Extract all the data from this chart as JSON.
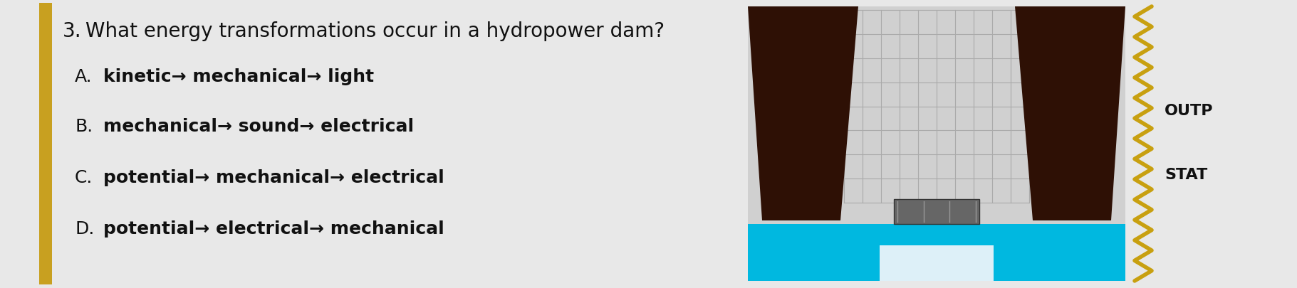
{
  "background_color": "#e8e8e8",
  "left_bar_color": "#c8a020",
  "question_number": "3.",
  "question_text": "What energy transformations occur in a hydropower dam?",
  "options": [
    {
      "letter": "A.",
      "text": "kinetic→ mechanical→ light"
    },
    {
      "letter": "B.",
      "text": "mechanical→ sound→ electrical"
    },
    {
      "letter": "C.",
      "text": "potential→ mechanical→ electrical"
    },
    {
      "letter": "D.",
      "text": "potential→ electrical→ mechanical"
    }
  ],
  "side_labels": [
    "OUTP",
    "STAT"
  ],
  "question_fontsize": 20,
  "option_letter_fontsize": 18,
  "option_text_fontsize": 18,
  "title_color": "#111111",
  "option_color": "#111111",
  "pillar_color": "#2e1005",
  "water_color": "#00b8e0",
  "foam_color": "#ddf0f8",
  "grid_color": "#c0c0c0",
  "station_color": "#666666",
  "wavy_color": "#c8a010",
  "dam_bg_color": "#d0d0d0"
}
